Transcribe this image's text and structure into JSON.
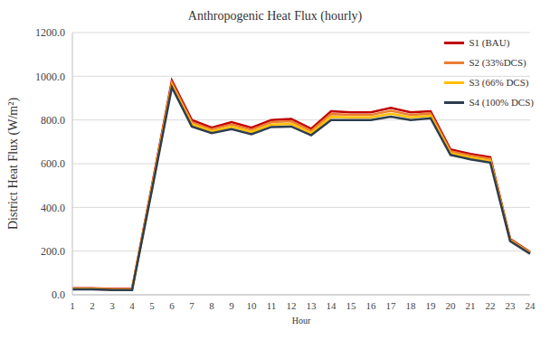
{
  "chart_data": {
    "type": "line",
    "title": "Anthropogenic Heat Flux (hourly)",
    "x_label": "Hour",
    "y_label": "District Heat Flux (W/m²)",
    "categories": [
      1,
      2,
      3,
      4,
      5,
      6,
      7,
      8,
      9,
      10,
      11,
      12,
      13,
      14,
      15,
      16,
      17,
      18,
      19,
      20,
      21,
      22,
      23,
      24
    ],
    "series": [
      {
        "name": "S1 (BAU)",
        "color": "#c00000",
        "values": [
          30,
          30,
          27,
          27,
          500,
          980,
          800,
          765,
          790,
          765,
          800,
          805,
          760,
          840,
          835,
          835,
          855,
          835,
          840,
          665,
          645,
          630,
          255,
          195
        ]
      },
      {
        "name": "S2 (33%DCS)",
        "color": "#ed7d31",
        "values": [
          28,
          28,
          25,
          25,
          494,
          970,
          790,
          757,
          780,
          755,
          790,
          794,
          750,
          827,
          823,
          823,
          842,
          823,
          829,
          657,
          637,
          622,
          252,
          193
        ]
      },
      {
        "name": "S3 (66% DCS)",
        "color": "#ffc000",
        "values": [
          27,
          27,
          24,
          24,
          487,
          960,
          780,
          748,
          769,
          745,
          779,
          782,
          740,
          814,
          812,
          812,
          829,
          812,
          819,
          648,
          628,
          613,
          248,
          190
        ]
      },
      {
        "name": "S4 (100% DCS)",
        "color": "#2e3d4f",
        "values": [
          25,
          25,
          22,
          22,
          480,
          950,
          770,
          740,
          758,
          735,
          768,
          770,
          730,
          800,
          800,
          800,
          815,
          800,
          808,
          640,
          620,
          605,
          245,
          188
        ]
      }
    ],
    "ylim": [
      0,
      1200
    ],
    "yticks": [
      {
        "value": 0,
        "label": "0.0"
      },
      {
        "value": 200,
        "label": "200.0"
      },
      {
        "value": 400,
        "label": "400.0"
      },
      {
        "value": 600,
        "label": "600.0"
      },
      {
        "value": 800,
        "label": "800.0"
      },
      {
        "value": 1000,
        "label": "1000.0"
      },
      {
        "value": 1200,
        "label": "1200.0"
      }
    ],
    "grid": true,
    "legend": "upper right"
  }
}
